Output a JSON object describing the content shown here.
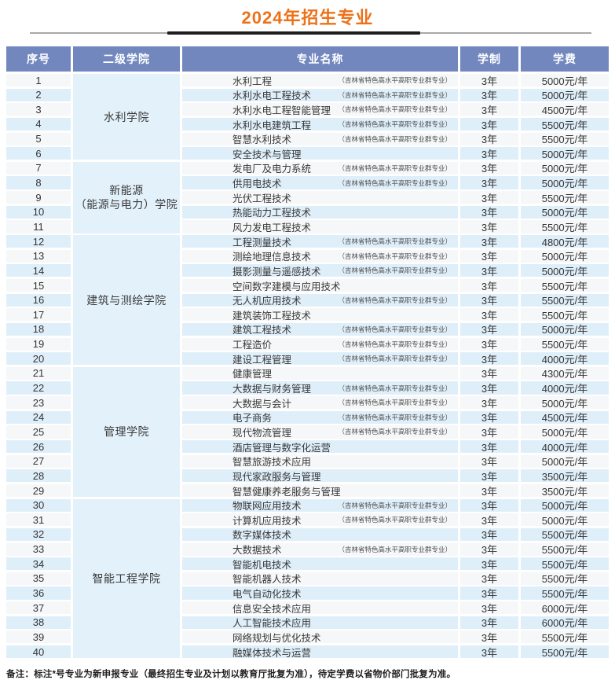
{
  "page": {
    "title": "2024年招生专业",
    "note": "备注：标注*号专业为新申报专业（最终招生专业及计划以教育厅批复为准），待定学费以省物价部门批复为准。"
  },
  "table": {
    "columns": [
      "序号",
      "二级学院",
      "专业名称",
      "学制",
      "学费"
    ],
    "tag_label": "（吉林省特色高水平高职专业群专业）",
    "colleges": [
      {
        "name": "水利学院",
        "name_lines": [
          "水利学院"
        ],
        "row_start": 1,
        "row_end": 6
      },
      {
        "name": "新能源（能源与电力）学院",
        "name_lines": [
          "新能源",
          "（能源与电力）学院"
        ],
        "row_start": 7,
        "row_end": 11
      },
      {
        "name": "建筑与测绘学院",
        "name_lines": [
          "建筑与测绘学院"
        ],
        "row_start": 12,
        "row_end": 20
      },
      {
        "name": "管理学院",
        "name_lines": [
          "管理学院"
        ],
        "row_start": 21,
        "row_end": 29
      },
      {
        "name": "智能工程学院",
        "name_lines": [
          "智能工程学院"
        ],
        "row_start": 30,
        "row_end": 40
      }
    ],
    "rows": [
      {
        "no": "1",
        "major": "水利工程",
        "tagged": true,
        "duration": "3年",
        "fee": "5000元/年"
      },
      {
        "no": "2",
        "major": "水利水电工程技术",
        "tagged": true,
        "duration": "3年",
        "fee": "5000元/年"
      },
      {
        "no": "3",
        "major": "水利水电工程智能管理",
        "tagged": true,
        "duration": "3年",
        "fee": "4500元/年"
      },
      {
        "no": "4",
        "major": "水利水电建筑工程",
        "tagged": true,
        "duration": "3年",
        "fee": "5500元/年"
      },
      {
        "no": "5",
        "major": "智慧水利技术",
        "tagged": true,
        "duration": "3年",
        "fee": "5500元/年"
      },
      {
        "no": "6",
        "major": "安全技术与管理",
        "tagged": false,
        "duration": "3年",
        "fee": "5000元/年"
      },
      {
        "no": "7",
        "major": "发电厂及电力系统",
        "tagged": true,
        "duration": "3年",
        "fee": "5000元/年"
      },
      {
        "no": "8",
        "major": "供用电技术",
        "tagged": true,
        "duration": "3年",
        "fee": "5000元/年"
      },
      {
        "no": "9",
        "major": "光伏工程技术",
        "tagged": false,
        "duration": "3年",
        "fee": "5500元/年"
      },
      {
        "no": "10",
        "major": "热能动力工程技术",
        "tagged": false,
        "duration": "3年",
        "fee": "5000元/年"
      },
      {
        "no": "11",
        "major": "风力发电工程技术",
        "tagged": false,
        "duration": "3年",
        "fee": "5500元/年"
      },
      {
        "no": "12",
        "major": "工程测量技术",
        "tagged": true,
        "duration": "3年",
        "fee": "4800元/年"
      },
      {
        "no": "13",
        "major": "测绘地理信息技术",
        "tagged": true,
        "duration": "3年",
        "fee": "5000元/年"
      },
      {
        "no": "14",
        "major": "摄影测量与遥感技术",
        "tagged": true,
        "duration": "3年",
        "fee": "5000元/年"
      },
      {
        "no": "15",
        "major": "空间数字建模与应用技术",
        "tagged": false,
        "duration": "3年",
        "fee": "5500元/年"
      },
      {
        "no": "16",
        "major": "无人机应用技术",
        "tagged": true,
        "duration": "3年",
        "fee": "5500元/年"
      },
      {
        "no": "17",
        "major": "建筑装饰工程技术",
        "tagged": false,
        "duration": "3年",
        "fee": "5500元/年"
      },
      {
        "no": "18",
        "major": "建筑工程技术",
        "tagged": true,
        "duration": "3年",
        "fee": "5000元/年"
      },
      {
        "no": "19",
        "major": "工程造价",
        "tagged": true,
        "duration": "3年",
        "fee": "5500元/年"
      },
      {
        "no": "20",
        "major": "建设工程管理",
        "tagged": true,
        "duration": "3年",
        "fee": "4000元/年"
      },
      {
        "no": "21",
        "major": "健康管理",
        "tagged": false,
        "duration": "3年",
        "fee": "4300元/年"
      },
      {
        "no": "22",
        "major": "大数据与财务管理",
        "tagged": true,
        "duration": "3年",
        "fee": "4000元/年"
      },
      {
        "no": "23",
        "major": "大数据与会计",
        "tagged": true,
        "duration": "3年",
        "fee": "5000元/年"
      },
      {
        "no": "24",
        "major": "电子商务",
        "tagged": true,
        "duration": "3年",
        "fee": "4500元/年"
      },
      {
        "no": "25",
        "major": "现代物流管理",
        "tagged": true,
        "duration": "3年",
        "fee": "5000元/年"
      },
      {
        "no": "26",
        "major": "酒店管理与数字化运营",
        "tagged": false,
        "duration": "3年",
        "fee": "4000元/年"
      },
      {
        "no": "27",
        "major": "智慧旅游技术应用",
        "tagged": false,
        "duration": "3年",
        "fee": "5000元/年"
      },
      {
        "no": "28",
        "major": "现代家政服务与管理",
        "tagged": false,
        "duration": "3年",
        "fee": "3500元/年"
      },
      {
        "no": "29",
        "major": "智慧健康养老服务与管理",
        "tagged": false,
        "duration": "3年",
        "fee": "3500元/年"
      },
      {
        "no": "30",
        "major": "物联网应用技术",
        "tagged": true,
        "duration": "3年",
        "fee": "5000元/年"
      },
      {
        "no": "31",
        "major": "计算机应用技术",
        "tagged": true,
        "duration": "3年",
        "fee": "5000元/年"
      },
      {
        "no": "32",
        "major": "数字媒体技术",
        "tagged": false,
        "duration": "3年",
        "fee": "5500元/年"
      },
      {
        "no": "33",
        "major": "大数据技术",
        "tagged": true,
        "duration": "3年",
        "fee": "5500元/年"
      },
      {
        "no": "34",
        "major": "智能机电技术",
        "tagged": false,
        "duration": "3年",
        "fee": "5500元/年"
      },
      {
        "no": "35",
        "major": "智能机器人技术",
        "tagged": false,
        "duration": "3年",
        "fee": "5500元/年"
      },
      {
        "no": "36",
        "major": "电气自动化技术",
        "tagged": false,
        "duration": "3年",
        "fee": "5500元/年"
      },
      {
        "no": "37",
        "major": "信息安全技术应用",
        "tagged": false,
        "duration": "3年",
        "fee": "6000元/年"
      },
      {
        "no": "38",
        "major": "人工智能技术应用",
        "tagged": false,
        "duration": "3年",
        "fee": "6000元/年"
      },
      {
        "no": "39",
        "major": "网络规划与优化技术",
        "tagged": false,
        "duration": "3年",
        "fee": "5500元/年"
      },
      {
        "no": "40",
        "major": "融媒体技术与运营",
        "tagged": false,
        "duration": "3年",
        "fee": "5500元/年"
      }
    ]
  },
  "colors": {
    "title_orange": "#ed7118",
    "header_blue": "#7187be",
    "row_stripe_blue": "#dfeffa",
    "row_stripe_light": "#f6f7f8",
    "college_cell_blue": "#e3f1fa"
  }
}
